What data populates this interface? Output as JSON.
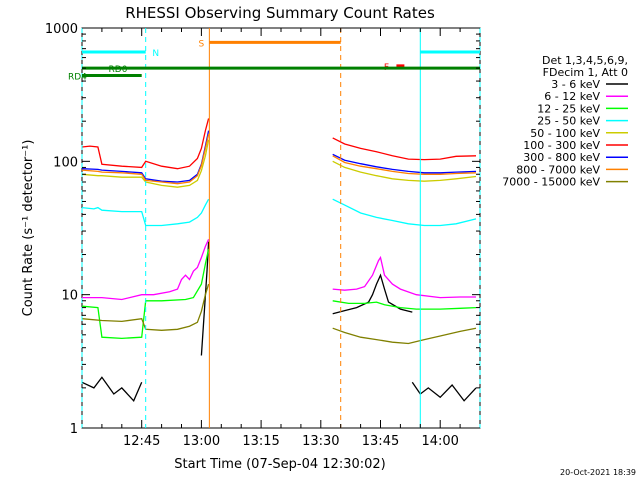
{
  "chart_data": {
    "type": "line",
    "title": "RHESSI Observing Summary Count Rates",
    "xlabel": "Start Time (07-Sep-04 12:30:02)",
    "ylabel": "Count Rate (s⁻¹ detector⁻¹)",
    "footer": "20-Oct-2021 18:39",
    "y_scale": "log",
    "ylim": [
      1,
      1000
    ],
    "xlim_minutes": [
      0,
      100
    ],
    "x_ticks": [
      {
        "label": "12:45",
        "t": 15
      },
      {
        "label": "13:00",
        "t": 30
      },
      {
        "label": "13:15",
        "t": 45
      },
      {
        "label": "13:30",
        "t": 60
      },
      {
        "label": "13:45",
        "t": 75
      },
      {
        "label": "14:00",
        "t": 90
      }
    ],
    "y_ticks": [
      {
        "label": "1",
        "v": 1
      },
      {
        "label": "10",
        "v": 10
      },
      {
        "label": "100",
        "v": 100
      },
      {
        "label": "1000",
        "v": 1000
      }
    ],
    "legend_header": [
      "Det 1,3,4,5,6,9,",
      "FDecim 1, Att 0"
    ],
    "legend_position": "right",
    "series": [
      {
        "name": "3 - 6 keV",
        "color": "#000000",
        "segments": [
          [
            [
              0,
              2.2
            ],
            [
              3,
              2.0
            ],
            [
              5,
              2.4
            ],
            [
              8,
              1.8
            ],
            [
              10,
              2.0
            ],
            [
              13,
              1.6
            ],
            [
              15,
              2.2
            ]
          ],
          [
            [
              30,
              3.5
            ],
            [
              30.8,
              8
            ],
            [
              31.4,
              15
            ],
            [
              31.8,
              25
            ]
          ],
          [
            [
              63,
              7.2
            ],
            [
              66,
              7.6
            ],
            [
              69,
              8
            ],
            [
              72,
              8.8
            ],
            [
              73,
              10
            ],
            [
              74,
              12
            ],
            [
              75,
              14
            ],
            [
              76,
              11
            ],
            [
              77,
              8.8
            ],
            [
              80,
              7.8
            ],
            [
              83,
              7.4
            ]
          ],
          [
            [
              83,
              2.2
            ],
            [
              85,
              1.8
            ],
            [
              87,
              2.0
            ],
            [
              90,
              1.7
            ],
            [
              93,
              2.1
            ],
            [
              96,
              1.6
            ],
            [
              99,
              2.0
            ]
          ]
        ]
      },
      {
        "name": "6 - 12 keV",
        "color": "#ff00ff",
        "segments": [
          [
            [
              0,
              9.5
            ],
            [
              5,
              9.5
            ],
            [
              10,
              9.2
            ],
            [
              15,
              10
            ],
            [
              18,
              10
            ],
            [
              22,
              10.5
            ],
            [
              24,
              11
            ],
            [
              25,
              13
            ],
            [
              26,
              14
            ],
            [
              27,
              13
            ],
            [
              28,
              15
            ],
            [
              29,
              16
            ],
            [
              30,
              19
            ],
            [
              31,
              23
            ],
            [
              31.8,
              26
            ]
          ],
          [
            [
              63,
              11
            ],
            [
              66,
              10.8
            ],
            [
              69,
              11
            ],
            [
              71,
              11.5
            ],
            [
              73,
              14
            ],
            [
              74.5,
              18
            ],
            [
              75,
              19
            ],
            [
              76,
              14
            ],
            [
              78,
              12
            ],
            [
              80,
              11
            ],
            [
              84,
              10
            ],
            [
              90,
              9.5
            ],
            [
              95,
              9.6
            ],
            [
              99,
              9.6
            ]
          ]
        ]
      },
      {
        "name": "12 - 25 keV",
        "color": "#00ff00",
        "segments": [
          [
            [
              0,
              8.2
            ],
            [
              4,
              8.0
            ],
            [
              5,
              4.8
            ],
            [
              10,
              4.7
            ],
            [
              15,
              4.8
            ],
            [
              16,
              9.0
            ],
            [
              20,
              9.0
            ],
            [
              26,
              9.2
            ],
            [
              28,
              9.5
            ],
            [
              30,
              12
            ],
            [
              31,
              17
            ],
            [
              31.8,
              22
            ]
          ],
          [
            [
              63,
              9
            ],
            [
              67,
              8.6
            ],
            [
              71,
              8.6
            ],
            [
              74,
              8.8
            ],
            [
              76,
              8.4
            ],
            [
              80,
              8
            ],
            [
              84,
              7.8
            ],
            [
              90,
              7.8
            ],
            [
              95,
              7.9
            ],
            [
              99,
              8.0
            ]
          ]
        ]
      },
      {
        "name": "25 - 50 keV",
        "color": "#00ffff",
        "segments": [
          [
            [
              0,
              45
            ],
            [
              3,
              44
            ],
            [
              4,
              45
            ],
            [
              5,
              43
            ],
            [
              10,
              42
            ],
            [
              15,
              42
            ],
            [
              16,
              33
            ],
            [
              20,
              33
            ],
            [
              24,
              34
            ],
            [
              27,
              35
            ],
            [
              29,
              38
            ],
            [
              30,
              41
            ],
            [
              31,
              47
            ],
            [
              31.8,
              52
            ]
          ],
          [
            [
              63,
              52
            ],
            [
              66,
              47
            ],
            [
              70,
              41
            ],
            [
              74,
              38
            ],
            [
              78,
              36
            ],
            [
              82,
              34
            ],
            [
              86,
              33
            ],
            [
              90,
              33
            ],
            [
              94,
              34
            ],
            [
              99,
              37
            ]
          ]
        ]
      },
      {
        "name": "50 - 100 keV",
        "color": "#cccc00",
        "segments": [
          [
            [
              0,
              80
            ],
            [
              4,
              78
            ],
            [
              5,
              78
            ],
            [
              10,
              76
            ],
            [
              15,
              76
            ],
            [
              16,
              70
            ],
            [
              20,
              66
            ],
            [
              24,
              64
            ],
            [
              27,
              66
            ],
            [
              29,
              72
            ],
            [
              30,
              85
            ],
            [
              31,
              110
            ],
            [
              31.8,
              145
            ]
          ],
          [
            [
              63,
              100
            ],
            [
              66,
              90
            ],
            [
              70,
              83
            ],
            [
              74,
              78
            ],
            [
              78,
              74
            ],
            [
              82,
              72
            ],
            [
              86,
              71
            ],
            [
              90,
              72
            ],
            [
              94,
              74
            ],
            [
              99,
              77
            ]
          ]
        ]
      },
      {
        "name": "100 - 300 keV",
        "color": "#ff0000",
        "segments": [
          [
            [
              0,
              128
            ],
            [
              2,
              130
            ],
            [
              4,
              128
            ],
            [
              5,
              95
            ],
            [
              10,
              92
            ],
            [
              15,
              90
            ],
            [
              16,
              100
            ],
            [
              20,
              92
            ],
            [
              24,
              88
            ],
            [
              27,
              92
            ],
            [
              29,
              105
            ],
            [
              30,
              125
            ],
            [
              31,
              170
            ],
            [
              31.8,
              210
            ]
          ],
          [
            [
              63,
              150
            ],
            [
              66,
              135
            ],
            [
              70,
              125
            ],
            [
              74,
              118
            ],
            [
              78,
              110
            ],
            [
              82,
              104
            ],
            [
              86,
              103
            ],
            [
              90,
              104
            ],
            [
              94,
              109
            ],
            [
              99,
              110
            ]
          ]
        ]
      },
      {
        "name": "300 - 800 keV",
        "color": "#0000ff",
        "segments": [
          [
            [
              0,
              88
            ],
            [
              4,
              87
            ],
            [
              5,
              86
            ],
            [
              10,
              84
            ],
            [
              15,
              82
            ],
            [
              16,
              74
            ],
            [
              20,
              71
            ],
            [
              24,
              70
            ],
            [
              27,
              72
            ],
            [
              29,
              80
            ],
            [
              30,
              95
            ],
            [
              31,
              130
            ],
            [
              31.8,
              170
            ]
          ],
          [
            [
              63,
              113
            ],
            [
              66,
              102
            ],
            [
              70,
              96
            ],
            [
              74,
              91
            ],
            [
              78,
              87
            ],
            [
              82,
              84
            ],
            [
              86,
              82
            ],
            [
              90,
              82
            ],
            [
              94,
              83
            ],
            [
              99,
              84
            ]
          ]
        ]
      },
      {
        "name": "800 - 7000 keV",
        "color": "#ff8000",
        "segments": [
          [
            [
              0,
              86
            ],
            [
              4,
              84
            ],
            [
              5,
              83
            ],
            [
              10,
              82
            ],
            [
              15,
              80
            ],
            [
              16,
              72
            ],
            [
              20,
              70
            ],
            [
              24,
              68
            ],
            [
              27,
              70
            ],
            [
              29,
              78
            ],
            [
              30,
              93
            ],
            [
              31,
              125
            ],
            [
              31.8,
              160
            ]
          ],
          [
            [
              63,
              110
            ],
            [
              66,
              98
            ],
            [
              70,
              92
            ],
            [
              74,
              88
            ],
            [
              78,
              84
            ],
            [
              82,
              81
            ],
            [
              86,
              80
            ],
            [
              90,
              80
            ],
            [
              94,
              81
            ],
            [
              99,
              82
            ]
          ]
        ]
      },
      {
        "name": "7000 - 15000 keV",
        "color": "#808000",
        "segments": [
          [
            [
              0,
              6.6
            ],
            [
              5,
              6.4
            ],
            [
              10,
              6.3
            ],
            [
              15,
              6.6
            ],
            [
              16,
              5.5
            ],
            [
              20,
              5.4
            ],
            [
              24,
              5.5
            ],
            [
              27,
              5.8
            ],
            [
              29,
              6.2
            ],
            [
              30,
              7.5
            ],
            [
              31,
              10
            ],
            [
              31.8,
              12
            ]
          ],
          [
            [
              63,
              5.6
            ],
            [
              66,
              5.2
            ],
            [
              70,
              4.8
            ],
            [
              74,
              4.6
            ],
            [
              78,
              4.4
            ],
            [
              82,
              4.3
            ],
            [
              86,
              4.6
            ],
            [
              90,
              4.9
            ],
            [
              95,
              5.3
            ],
            [
              99,
              5.6
            ]
          ]
        ]
      }
    ],
    "vertical_lines": [
      {
        "t": 0,
        "color": "#00ffff",
        "style": "dashed"
      },
      {
        "t": 16,
        "color": "#00ffff",
        "style": "dashed"
      },
      {
        "t": 32,
        "color": "#ff8000",
        "style": "solid"
      },
      {
        "t": 65,
        "color": "#ff8000",
        "style": "dashed"
      },
      {
        "t": 85,
        "color": "#00ffff",
        "style": "solid"
      },
      {
        "t": 101.5,
        "color": "#00ffff",
        "style": "dashed"
      }
    ],
    "flag_bars": [
      {
        "label": "N",
        "color": "#00ffff",
        "segments": [
          [
            0,
            16
          ],
          [
            85,
            101.5
          ]
        ],
        "value": 660
      },
      {
        "label": "S",
        "color": "#ff8000",
        "segments": [
          [
            32,
            65
          ]
        ],
        "value": 780
      },
      {
        "label": "F",
        "color": "#ff0000",
        "segments": [
          [
            79,
            81
          ]
        ],
        "value": 520
      },
      {
        "label": "RD0",
        "color": "#008000",
        "segments": [
          [
            0,
            101.5
          ]
        ],
        "value": 500
      },
      {
        "label": "RD4",
        "color": "#008000",
        "segments": [
          [
            0,
            15
          ]
        ],
        "value": 440
      }
    ]
  }
}
